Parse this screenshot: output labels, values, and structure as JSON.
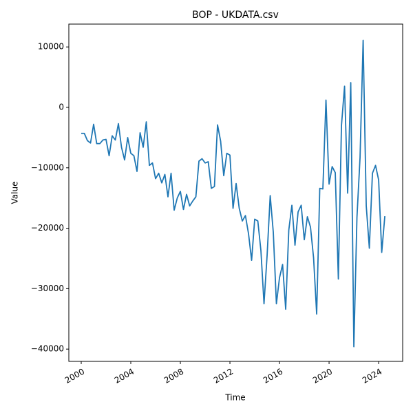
{
  "chart_data": {
    "type": "line",
    "title": "BOP - UKDATA.csv",
    "x_label": "Time",
    "y_label": "Value",
    "x": [
      2000,
      2000.25,
      2000.5,
      2000.75,
      2001,
      2001.25,
      2001.5,
      2001.75,
      2002,
      2002.25,
      2002.5,
      2002.75,
      2003,
      2003.25,
      2003.5,
      2003.75,
      2004,
      2004.25,
      2004.5,
      2004.75,
      2005,
      2005.25,
      2005.5,
      2005.75,
      2006,
      2006.25,
      2006.5,
      2006.75,
      2007,
      2007.25,
      2007.5,
      2007.75,
      2008,
      2008.25,
      2008.5,
      2008.75,
      2009,
      2009.25,
      2009.5,
      2009.75,
      2010,
      2010.25,
      2010.5,
      2010.75,
      2011,
      2011.25,
      2011.5,
      2011.75,
      2012,
      2012.25,
      2012.5,
      2012.75,
      2013,
      2013.25,
      2013.5,
      2013.75,
      2014,
      2014.25,
      2014.5,
      2014.75,
      2015,
      2015.25,
      2015.5,
      2015.75,
      2016,
      2016.25,
      2016.5,
      2016.75,
      2017,
      2017.25,
      2017.5,
      2017.75,
      2018,
      2018.25,
      2018.5,
      2018.75,
      2019,
      2019.25,
      2019.5,
      2019.75,
      2020,
      2020.25,
      2020.5,
      2020.75,
      2021,
      2021.25,
      2021.5,
      2021.75,
      2022,
      2022.25,
      2022.5,
      2022.75,
      2023,
      2023.25,
      2023.5,
      2023.75,
      2024,
      2024.25,
      2024.5
    ],
    "series": [
      {
        "name": "BOP",
        "color": "#1f77b4",
        "values": [
          -4300,
          -4300,
          -5500,
          -5900,
          -2800,
          -6000,
          -6000,
          -5400,
          -5300,
          -8000,
          -4700,
          -5400,
          -2700,
          -6600,
          -8700,
          -5000,
          -7600,
          -8000,
          -10600,
          -4200,
          -6600,
          -2400,
          -9600,
          -9200,
          -11800,
          -10900,
          -12500,
          -11100,
          -14800,
          -10900,
          -17000,
          -15000,
          -13900,
          -16900,
          -14400,
          -16300,
          -15500,
          -14800,
          -8900,
          -8500,
          -9200,
          -9000,
          -13400,
          -13100,
          -2900,
          -5600,
          -11300,
          -7600,
          -7900,
          -16700,
          -12600,
          -16700,
          -18800,
          -17900,
          -20900,
          -25300,
          -18500,
          -18800,
          -23700,
          -32500,
          -24500,
          -14600,
          -20700,
          -32500,
          -28200,
          -26000,
          -33400,
          -20300,
          -16200,
          -22800,
          -17300,
          -16200,
          -21900,
          -18100,
          -19800,
          -24900,
          -34200,
          -13400,
          -13500,
          1200,
          -12700,
          -9800,
          -10800,
          -28400,
          -3000,
          3500,
          -14200,
          4100,
          -39600,
          -18200,
          -8300,
          11100,
          -16300,
          -23300,
          -10900,
          -9600,
          -12000,
          -24000,
          -18000
        ]
      }
    ],
    "xlim": [
      1999,
      2025.94
    ],
    "xticks": [
      2000,
      2004,
      2008,
      2012,
      2016,
      2020,
      2024
    ],
    "ylim": [
      -42030,
      13780
    ],
    "yticks": [
      {
        "value": -40000,
        "label": "−40000"
      },
      {
        "value": -30000,
        "label": "−30000"
      },
      {
        "value": -20000,
        "label": "−20000"
      },
      {
        "value": -10000,
        "label": "−10000"
      },
      0,
      10000
    ]
  }
}
